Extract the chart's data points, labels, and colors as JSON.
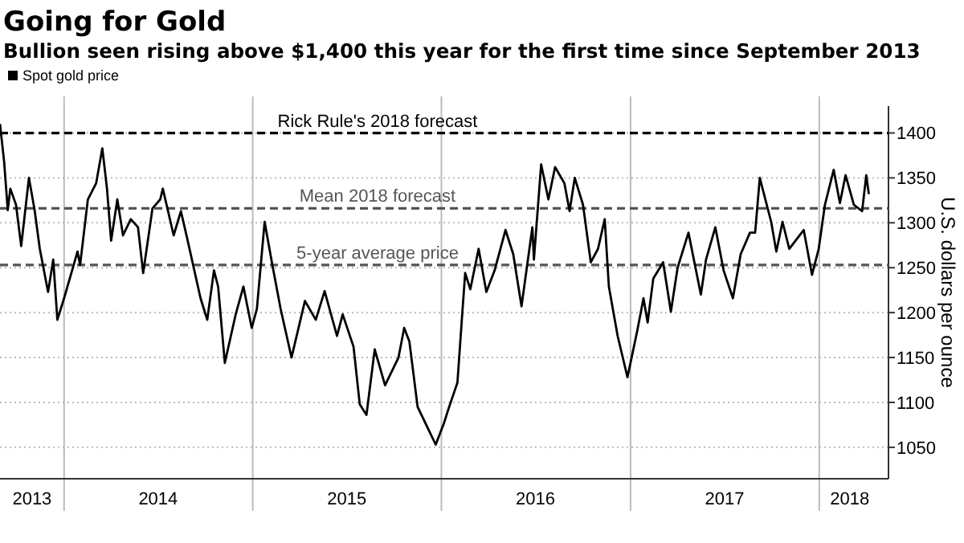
{
  "chart_data": {
    "type": "line",
    "title": "Going for Gold",
    "subtitle": "Bullion seen rising above $1,400 this year for the first time since September 2013",
    "ylabel": "U.S. dollars per ounce",
    "legend": "top left",
    "grid": true,
    "line_style": "solid",
    "marker": "none",
    "x": [
      "2013-08-30",
      "2013-09-07",
      "2013-09-14",
      "2013-09-19",
      "2013-09-30",
      "2013-10-10",
      "2013-10-25",
      "2013-11-05",
      "2013-11-15",
      "2013-12-01",
      "2013-12-11",
      "2013-12-19",
      "2014-01-01",
      "2014-01-27",
      "2014-02-01",
      "2014-02-16",
      "2014-03-04",
      "2014-03-16",
      "2014-03-25",
      "2014-04-02",
      "2014-04-14",
      "2014-04-25",
      "2014-05-10",
      "2014-05-24",
      "2014-06-03",
      "2014-06-21",
      "2014-07-06",
      "2014-07-11",
      "2014-08-01",
      "2014-08-15",
      "2014-08-27",
      "2014-09-22",
      "2014-10-05",
      "2014-10-18",
      "2014-10-26",
      "2014-11-08",
      "2014-11-29",
      "2014-12-14",
      "2014-12-30",
      "2015-01-09",
      "2015-01-24",
      "2015-02-08",
      "2015-02-24",
      "2015-03-17",
      "2015-04-12",
      "2015-05-03",
      "2015-05-20",
      "2015-06-13",
      "2015-06-24",
      "2015-07-15",
      "2015-07-27",
      "2015-08-09",
      "2015-08-25",
      "2015-09-14",
      "2015-10-10",
      "2015-10-21",
      "2015-10-31",
      "2015-11-16",
      "2015-12-06",
      "2015-12-21",
      "2016-01-06",
      "2016-01-16",
      "2016-02-01",
      "2016-02-11",
      "2016-02-16",
      "2016-02-26",
      "2016-03-13",
      "2016-03-28",
      "2016-04-13",
      "2016-05-04",
      "2016-05-19",
      "2016-06-04",
      "2016-06-25",
      "2016-06-28",
      "2016-07-12",
      "2016-07-26",
      "2016-08-08",
      "2016-08-26",
      "2016-09-05",
      "2016-09-15",
      "2016-10-01",
      "2016-10-16",
      "2016-10-30",
      "2016-11-12",
      "2016-11-20",
      "2016-12-07",
      "2016-12-26",
      "2017-01-14",
      "2017-01-26",
      "2017-02-03",
      "2017-02-14",
      "2017-03-05",
      "2017-03-20",
      "2017-04-02",
      "2017-04-23",
      "2017-05-17",
      "2017-05-27",
      "2017-06-14",
      "2017-06-30",
      "2017-07-18",
      "2017-08-02",
      "2017-08-20",
      "2017-08-30",
      "2017-09-08",
      "2017-09-30",
      "2017-10-10",
      "2017-10-22",
      "2017-11-04",
      "2017-11-20",
      "2017-12-02",
      "2017-12-18",
      "2017-12-31",
      "2018-01-12",
      "2018-01-29",
      "2018-02-10",
      "2018-02-21",
      "2018-03-09",
      "2018-03-25",
      "2018-04-02",
      "2018-04-07"
    ],
    "series": [
      {
        "name": "Spot gold price",
        "color": "#000000",
        "values": [
          1410,
          1368,
          1314,
          1338,
          1320,
          1274,
          1350,
          1314,
          1271,
          1223,
          1259,
          1192,
          1216,
          1268,
          1253,
          1326,
          1344,
          1383,
          1338,
          1280,
          1326,
          1286,
          1304,
          1295,
          1244,
          1316,
          1326,
          1338,
          1286,
          1313,
          1283,
          1216,
          1192,
          1247,
          1229,
          1144,
          1198,
          1229,
          1183,
          1204,
          1301,
          1253,
          1204,
          1150,
          1213,
          1192,
          1224,
          1174,
          1198,
          1162,
          1098,
          1086,
          1159,
          1119,
          1150,
          1183,
          1168,
          1095,
          1071,
          1053,
          1077,
          1095,
          1122,
          1204,
          1244,
          1226,
          1271,
          1223,
          1247,
          1292,
          1265,
          1207,
          1295,
          1259,
          1365,
          1326,
          1362,
          1344,
          1313,
          1350,
          1320,
          1256,
          1271,
          1304,
          1229,
          1174,
          1128,
          1180,
          1216,
          1189,
          1238,
          1256,
          1201,
          1250,
          1289,
          1220,
          1259,
          1295,
          1247,
          1216,
          1265,
          1289,
          1289,
          1350,
          1301,
          1268,
          1301,
          1271,
          1283,
          1292,
          1242,
          1271,
          1320,
          1359,
          1322,
          1353,
          1320,
          1313,
          1353,
          1332
        ]
      }
    ],
    "xlim": [
      "2013-08-30",
      "2018-05-15"
    ],
    "xticks": [
      {
        "value": "2013-10-31",
        "label": "2013"
      },
      {
        "value": "2014-01-01",
        "label": null
      },
      {
        "value": "2014-07-02",
        "label": "2014"
      },
      {
        "value": "2015-01-01",
        "label": null
      },
      {
        "value": "2015-07-02",
        "label": "2015"
      },
      {
        "value": "2016-01-01",
        "label": null
      },
      {
        "value": "2016-07-01",
        "label": "2016"
      },
      {
        "value": "2017-01-01",
        "label": null
      },
      {
        "value": "2017-07-02",
        "label": "2017"
      },
      {
        "value": "2018-01-01",
        "label": null
      },
      {
        "value": "2018-03-01",
        "label": "2018"
      }
    ],
    "ylim": [
      1015,
      1430
    ],
    "yticks": [
      1050,
      1100,
      1150,
      1200,
      1250,
      1300,
      1350,
      1400
    ],
    "ref_lines": [
      {
        "axis": "y",
        "value": 1400,
        "label": "Rick Rule's 2018 forecast",
        "color": "#000000",
        "line_style": "dashed"
      },
      {
        "axis": "y",
        "value": 1316,
        "label": "Mean 2018 forecast",
        "color": "#555555",
        "line_style": "dashed"
      },
      {
        "axis": "y",
        "value": 1253,
        "label": "5-year average price",
        "color": "#555555",
        "line_style": "dashed"
      }
    ]
  }
}
